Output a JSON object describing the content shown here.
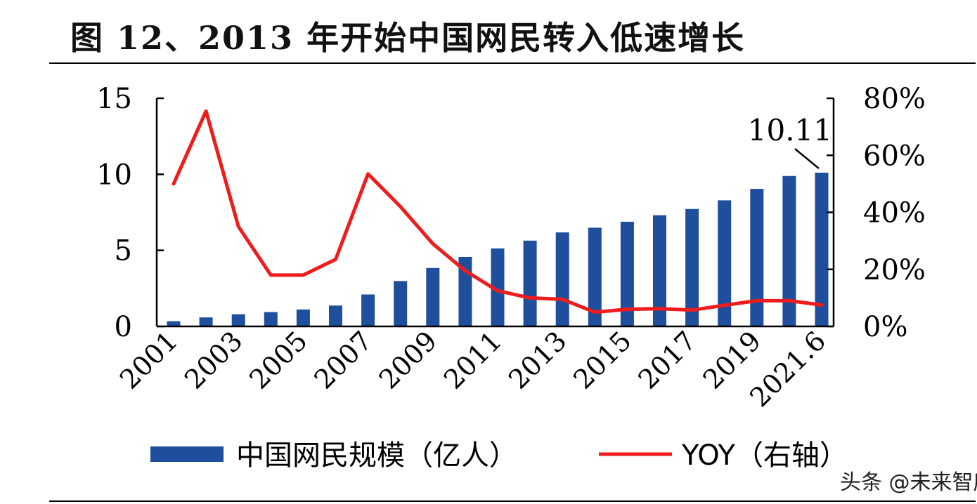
{
  "title": "图 12、2013 年开始中国网民转入低速增长",
  "watermark": "头条 @未来智库",
  "chart_data": {
    "type": "bar+line",
    "categories": [
      "2001",
      "2002",
      "2003",
      "2004",
      "2005",
      "2006",
      "2007",
      "2008",
      "2009",
      "2010",
      "2011",
      "2012",
      "2013",
      "2014",
      "2015",
      "2016",
      "2017",
      "2018",
      "2019",
      "2020",
      "2021.6"
    ],
    "x_tick_labels": [
      "2001",
      "2003",
      "2005",
      "2007",
      "2009",
      "2011",
      "2013",
      "2015",
      "2017",
      "2019",
      "2021.6"
    ],
    "series": [
      {
        "name": "中国网民规模（亿人）",
        "type": "bar",
        "axis": "left",
        "color": "#1f4e9c",
        "values": [
          0.34,
          0.59,
          0.8,
          0.94,
          1.11,
          1.37,
          2.1,
          2.98,
          3.84,
          4.57,
          5.13,
          5.64,
          6.18,
          6.49,
          6.88,
          7.31,
          7.72,
          8.29,
          9.04,
          9.89,
          10.11
        ]
      },
      {
        "name": "YOY（右轴）",
        "type": "line",
        "axis": "right",
        "color": "#ee1c1c",
        "values": [
          0.5,
          0.755,
          0.35,
          0.18,
          0.18,
          0.235,
          0.535,
          0.42,
          0.29,
          0.195,
          0.125,
          0.1,
          0.095,
          0.05,
          0.06,
          0.062,
          0.057,
          0.074,
          0.09,
          0.09,
          0.075
        ]
      }
    ],
    "y_left": {
      "ylim": [
        0,
        15
      ],
      "ticks": [
        0,
        5,
        10,
        15
      ],
      "tick_labels": [
        "0",
        "5",
        "10",
        "15"
      ]
    },
    "y_right": {
      "ylim": [
        0,
        0.8
      ],
      "ticks": [
        0,
        0.2,
        0.4,
        0.6,
        0.8
      ],
      "tick_labels": [
        "0%",
        "20%",
        "40%",
        "60%",
        "80%"
      ]
    },
    "annotation": {
      "text": "10.11",
      "category": "2021.6"
    },
    "legend": {
      "placement": "bottom"
    },
    "grid": false
  }
}
